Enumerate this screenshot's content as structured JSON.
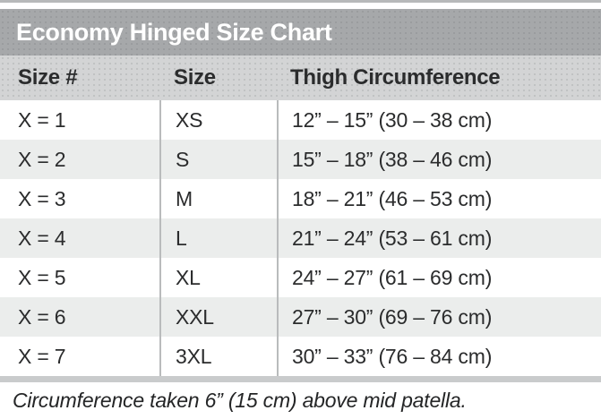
{
  "chart": {
    "title": "Economy Hinged Size Chart",
    "columns": [
      "Size #",
      "Size",
      "Thigh Circumference"
    ],
    "rows": [
      {
        "size_num": "X = 1",
        "size": "XS",
        "thigh": "12” – 15” (30 – 38 cm)"
      },
      {
        "size_num": "X = 2",
        "size": "S",
        "thigh": "15” – 18” (38 – 46 cm)"
      },
      {
        "size_num": "X = 3",
        "size": "M",
        "thigh": "18” – 21” (46 – 53 cm)"
      },
      {
        "size_num": "X = 4",
        "size": "L",
        "thigh": "21” – 24” (53 – 61 cm)"
      },
      {
        "size_num": "X = 5",
        "size": "XL",
        "thigh": "24” – 27” (61 – 69 cm)"
      },
      {
        "size_num": "X = 6",
        "size": "XXL",
        "thigh": "27” – 30” (69 – 76 cm)"
      },
      {
        "size_num": "X = 7",
        "size": "3XL",
        "thigh": "30” – 33” (76 – 84 cm)"
      }
    ],
    "footnote": "Circumference taken 6” (15 cm) above mid patella."
  },
  "colors": {
    "title_bar_bg": "#a6a8aa",
    "title_text": "#ffffff",
    "header_row_bg": "#d3d4d5",
    "stripe_row_bg": "#ebedec",
    "column_divider": "#b9bbbc",
    "bottom_rule": "#c9cbcc",
    "body_text": "#2b2c2d"
  }
}
